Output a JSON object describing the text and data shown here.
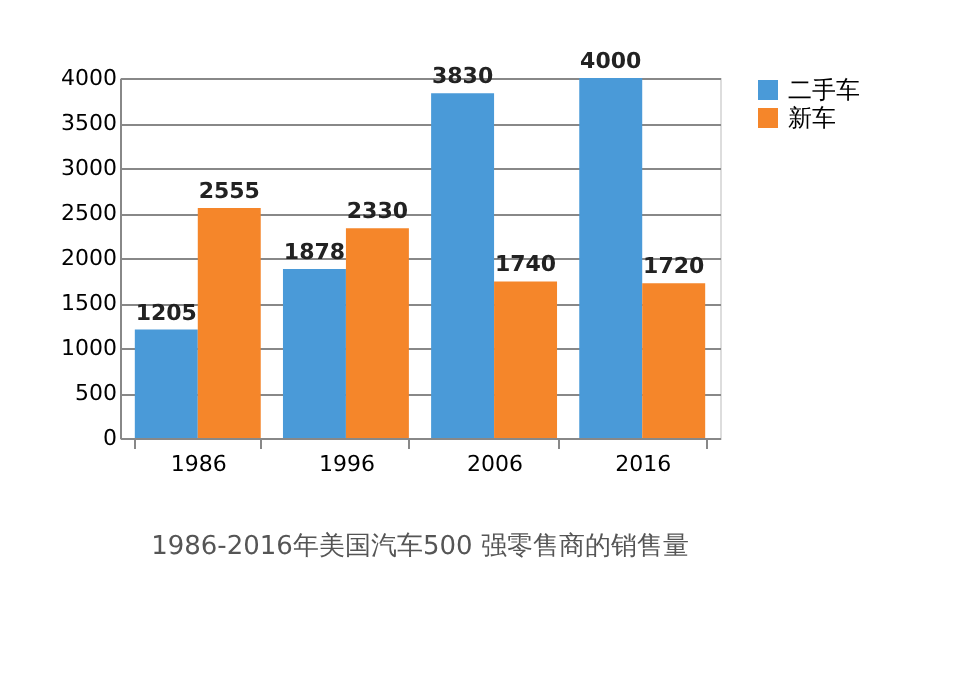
{
  "chart_data": {
    "type": "bar",
    "title": "1986-2016年美国汽车500 强零售商的销售量",
    "categories": [
      "1986",
      "1996",
      "2006",
      "2016"
    ],
    "series": [
      {
        "name": "二手车",
        "color": "#4a9ad8",
        "values": [
          1205,
          1878,
          3830,
          4000
        ]
      },
      {
        "name": "新车",
        "color": "#f5862a",
        "values": [
          2555,
          2330,
          1740,
          1720
        ]
      }
    ],
    "ylim": [
      0,
      4000
    ],
    "yticks": [
      0,
      500,
      1000,
      1500,
      2000,
      2500,
      3000,
      3500,
      4000
    ],
    "grid": "y",
    "legend": "right",
    "data_labels": true
  }
}
